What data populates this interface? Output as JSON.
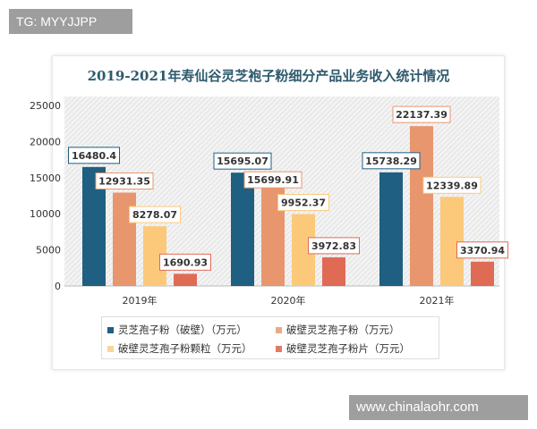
{
  "watermarks": {
    "top_left": "TG: MYYJJPP",
    "bottom_right": "www.chinalaohr.com"
  },
  "chart_data": {
    "type": "bar",
    "title": "2019-2021年寿仙谷灵芝袍子粉细分产品业务收入统计情况",
    "categories": [
      "2019年",
      "2020年",
      "2021年"
    ],
    "series": [
      {
        "name": "灵芝孢子粉（破壁）（万元）",
        "color": "#1e5f82",
        "values": [
          16480.4,
          15695.07,
          15738.29
        ],
        "labels": [
          "16480.4",
          "15695.07",
          "15738.29"
        ]
      },
      {
        "name": "破壁灵芝孢子粉（万元）",
        "color": "#e8966e",
        "values": [
          12931.35,
          15699.91,
          22137.39
        ],
        "labels": [
          "12931.35",
          "15699.91",
          "22137.39"
        ]
      },
      {
        "name": "破壁灵芝孢子粉颗粒（万元）",
        "color": "#fcc97a",
        "values": [
          8278.07,
          9952.37,
          12339.89
        ],
        "labels": [
          "8278.07",
          "9952.37",
          "12339.89"
        ]
      },
      {
        "name": "破壁灵芝孢子粉片（万元）",
        "color": "#e06b55",
        "values": [
          1690.93,
          3972.83,
          3370.94
        ],
        "labels": [
          "1690.93",
          "3972.83",
          "3370.94"
        ]
      }
    ],
    "yticks": [
      "0",
      "5000",
      "10000",
      "15000",
      "20000",
      "25000"
    ],
    "ylim": [
      0,
      25000
    ],
    "grid": false,
    "legend_position": "bottom"
  }
}
